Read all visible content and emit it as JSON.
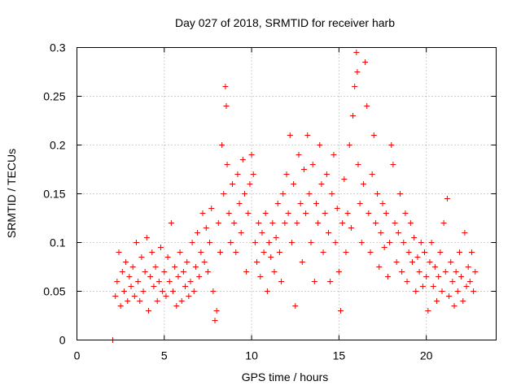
{
  "chart_data": {
    "type": "scatter",
    "title": "Day 027 of 2018, SRMTID for receiver harb",
    "xlabel": "GPS time / hours",
    "ylabel": "SRMTID / TECUs",
    "xlim": [
      0,
      24
    ],
    "ylim": [
      0,
      0.3
    ],
    "xticks": [
      0,
      5,
      10,
      15,
      20
    ],
    "yticks": [
      0,
      0.05,
      0.1,
      0.15,
      0.2,
      0.25,
      0.3
    ],
    "xtick_labels": [
      "0",
      "5",
      "10",
      "15",
      "20"
    ],
    "ytick_labels": [
      "0",
      "0.05",
      "0.1",
      "0.15",
      "0.2",
      "0.25",
      "0.3"
    ],
    "grid": true,
    "marker": "+",
    "series_color": "#ff0000",
    "series": [
      {
        "name": "SRMTID",
        "points": [
          [
            2.05,
            0.0
          ],
          [
            2.2,
            0.045
          ],
          [
            2.3,
            0.06
          ],
          [
            2.4,
            0.09
          ],
          [
            2.5,
            0.035
          ],
          [
            2.6,
            0.07
          ],
          [
            2.7,
            0.05
          ],
          [
            2.8,
            0.08
          ],
          [
            2.9,
            0.04
          ],
          [
            3.0,
            0.065
          ],
          [
            3.1,
            0.055
          ],
          [
            3.2,
            0.075
          ],
          [
            3.3,
            0.045
          ],
          [
            3.4,
            0.1
          ],
          [
            3.5,
            0.06
          ],
          [
            3.6,
            0.04
          ],
          [
            3.7,
            0.085
          ],
          [
            3.8,
            0.05
          ],
          [
            3.9,
            0.07
          ],
          [
            4.0,
            0.105
          ],
          [
            4.1,
            0.03
          ],
          [
            4.2,
            0.065
          ],
          [
            4.3,
            0.09
          ],
          [
            4.4,
            0.055
          ],
          [
            4.5,
            0.075
          ],
          [
            4.6,
            0.04
          ],
          [
            4.7,
            0.06
          ],
          [
            4.8,
            0.095
          ],
          [
            4.9,
            0.05
          ],
          [
            5.0,
            0.07
          ],
          [
            5.1,
            0.045
          ],
          [
            5.2,
            0.085
          ],
          [
            5.3,
            0.06
          ],
          [
            5.4,
            0.12
          ],
          [
            5.5,
            0.05
          ],
          [
            5.6,
            0.075
          ],
          [
            5.7,
            0.035
          ],
          [
            5.8,
            0.065
          ],
          [
            5.9,
            0.09
          ],
          [
            6.0,
            0.04
          ],
          [
            6.1,
            0.07
          ],
          [
            6.2,
            0.055
          ],
          [
            6.3,
            0.08
          ],
          [
            6.4,
            0.045
          ],
          [
            6.5,
            0.06
          ],
          [
            6.6,
            0.1
          ],
          [
            6.7,
            0.05
          ],
          [
            6.8,
            0.075
          ],
          [
            6.9,
            0.11
          ],
          [
            7.0,
            0.065
          ],
          [
            7.1,
            0.09
          ],
          [
            7.2,
            0.13
          ],
          [
            7.3,
            0.08
          ],
          [
            7.4,
            0.115
          ],
          [
            7.5,
            0.07
          ],
          [
            7.6,
            0.1
          ],
          [
            7.7,
            0.135
          ],
          [
            7.8,
            0.05
          ],
          [
            7.9,
            0.02
          ],
          [
            8.0,
            0.03
          ],
          [
            8.1,
            0.12
          ],
          [
            8.2,
            0.09
          ],
          [
            8.3,
            0.2
          ],
          [
            8.4,
            0.15
          ],
          [
            8.5,
            0.26
          ],
          [
            8.55,
            0.24
          ],
          [
            8.6,
            0.18
          ],
          [
            8.7,
            0.13
          ],
          [
            8.8,
            0.1
          ],
          [
            8.9,
            0.16
          ],
          [
            9.0,
            0.12
          ],
          [
            9.1,
            0.09
          ],
          [
            9.2,
            0.17
          ],
          [
            9.3,
            0.14
          ],
          [
            9.4,
            0.11
          ],
          [
            9.5,
            0.185
          ],
          [
            9.6,
            0.15
          ],
          [
            9.7,
            0.07
          ],
          [
            9.8,
            0.13
          ],
          [
            9.9,
            0.16
          ],
          [
            10.0,
            0.19
          ],
          [
            10.1,
            0.17
          ],
          [
            10.2,
            0.1
          ],
          [
            10.3,
            0.08
          ],
          [
            10.4,
            0.12
          ],
          [
            10.5,
            0.065
          ],
          [
            10.6,
            0.11
          ],
          [
            10.7,
            0.09
          ],
          [
            10.8,
            0.13
          ],
          [
            10.9,
            0.05
          ],
          [
            11.0,
            0.1
          ],
          [
            11.1,
            0.085
          ],
          [
            11.2,
            0.12
          ],
          [
            11.3,
            0.07
          ],
          [
            11.4,
            0.105
          ],
          [
            11.5,
            0.14
          ],
          [
            11.6,
            0.09
          ],
          [
            11.7,
            0.06
          ],
          [
            11.8,
            0.15
          ],
          [
            11.9,
            0.12
          ],
          [
            12.0,
            0.17
          ],
          [
            12.1,
            0.13
          ],
          [
            12.2,
            0.21
          ],
          [
            12.3,
            0.1
          ],
          [
            12.4,
            0.16
          ],
          [
            12.5,
            0.035
          ],
          [
            12.6,
            0.12
          ],
          [
            12.7,
            0.19
          ],
          [
            12.8,
            0.14
          ],
          [
            12.9,
            0.08
          ],
          [
            13.0,
            0.175
          ],
          [
            13.1,
            0.13
          ],
          [
            13.2,
            0.21
          ],
          [
            13.3,
            0.15
          ],
          [
            13.4,
            0.1
          ],
          [
            13.5,
            0.18
          ],
          [
            13.6,
            0.06
          ],
          [
            13.7,
            0.14
          ],
          [
            13.8,
            0.12
          ],
          [
            13.9,
            0.2
          ],
          [
            14.0,
            0.16
          ],
          [
            14.1,
            0.09
          ],
          [
            14.2,
            0.13
          ],
          [
            14.3,
            0.17
          ],
          [
            14.4,
            0.11
          ],
          [
            14.5,
            0.06
          ],
          [
            14.6,
            0.15
          ],
          [
            14.7,
            0.19
          ],
          [
            14.8,
            0.1
          ],
          [
            14.9,
            0.135
          ],
          [
            15.0,
            0.07
          ],
          [
            15.1,
            0.03
          ],
          [
            15.2,
            0.12
          ],
          [
            15.3,
            0.165
          ],
          [
            15.4,
            0.09
          ],
          [
            15.5,
            0.13
          ],
          [
            15.6,
            0.2
          ],
          [
            15.7,
            0.115
          ],
          [
            15.8,
            0.23
          ],
          [
            15.9,
            0.26
          ],
          [
            16.0,
            0.295
          ],
          [
            16.05,
            0.275
          ],
          [
            16.1,
            0.18
          ],
          [
            16.2,
            0.14
          ],
          [
            16.3,
            0.1
          ],
          [
            16.4,
            0.16
          ],
          [
            16.5,
            0.285
          ],
          [
            16.6,
            0.24
          ],
          [
            16.7,
            0.13
          ],
          [
            16.8,
            0.09
          ],
          [
            16.9,
            0.17
          ],
          [
            17.0,
            0.21
          ],
          [
            17.1,
            0.12
          ],
          [
            17.2,
            0.15
          ],
          [
            17.3,
            0.075
          ],
          [
            17.4,
            0.11
          ],
          [
            17.5,
            0.14
          ],
          [
            17.6,
            0.095
          ],
          [
            17.7,
            0.13
          ],
          [
            17.8,
            0.065
          ],
          [
            17.9,
            0.1
          ],
          [
            18.0,
            0.2
          ],
          [
            18.1,
            0.18
          ],
          [
            18.2,
            0.12
          ],
          [
            18.3,
            0.08
          ],
          [
            18.4,
            0.11
          ],
          [
            18.5,
            0.15
          ],
          [
            18.6,
            0.07
          ],
          [
            18.7,
            0.1
          ],
          [
            18.8,
            0.13
          ],
          [
            18.9,
            0.06
          ],
          [
            19.0,
            0.09
          ],
          [
            19.1,
            0.12
          ],
          [
            19.2,
            0.08
          ],
          [
            19.3,
            0.105
          ],
          [
            19.4,
            0.05
          ],
          [
            19.5,
            0.085
          ],
          [
            19.6,
            0.07
          ],
          [
            19.7,
            0.1
          ],
          [
            19.8,
            0.055
          ],
          [
            19.9,
            0.09
          ],
          [
            20.0,
            0.065
          ],
          [
            20.1,
            0.03
          ],
          [
            20.2,
            0.08
          ],
          [
            20.3,
            0.1
          ],
          [
            20.4,
            0.055
          ],
          [
            20.5,
            0.075
          ],
          [
            20.6,
            0.04
          ],
          [
            20.7,
            0.065
          ],
          [
            20.8,
            0.09
          ],
          [
            20.9,
            0.05
          ],
          [
            21.0,
            0.12
          ],
          [
            21.1,
            0.07
          ],
          [
            21.2,
            0.145
          ],
          [
            21.3,
            0.045
          ],
          [
            21.4,
            0.08
          ],
          [
            21.5,
            0.06
          ],
          [
            21.6,
            0.035
          ],
          [
            21.7,
            0.07
          ],
          [
            21.8,
            0.05
          ],
          [
            21.9,
            0.09
          ],
          [
            22.0,
            0.065
          ],
          [
            22.1,
            0.04
          ],
          [
            22.2,
            0.11
          ],
          [
            22.3,
            0.055
          ],
          [
            22.4,
            0.075
          ],
          [
            22.5,
            0.06
          ],
          [
            22.6,
            0.09
          ],
          [
            22.7,
            0.05
          ],
          [
            22.8,
            0.07
          ]
        ]
      }
    ]
  }
}
